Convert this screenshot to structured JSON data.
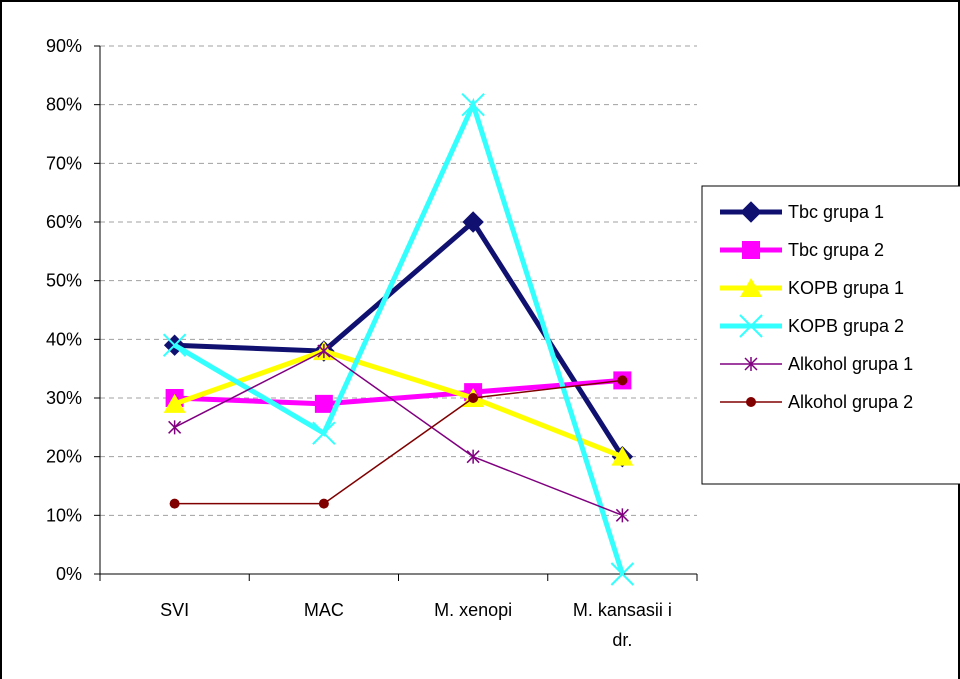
{
  "chart_data": {
    "type": "line",
    "categories": [
      [
        "SVI"
      ],
      [
        "MAC"
      ],
      [
        "M. xenopi"
      ],
      [
        "M. kansasii i",
        "dr."
      ]
    ],
    "ylim": [
      0,
      90
    ],
    "yticks": [
      0,
      10,
      20,
      30,
      40,
      50,
      60,
      70,
      80,
      90
    ],
    "ytick_labels": [
      "0%",
      "10%",
      "20%",
      "30%",
      "40%",
      "50%",
      "60%",
      "70%",
      "80%",
      "90%"
    ],
    "grid": true,
    "legend_position": "right",
    "series": [
      {
        "name": "Tbc grupa 1",
        "values": [
          39,
          38,
          60,
          20
        ],
        "color": "#101070",
        "marker": "diamond",
        "width": 5
      },
      {
        "name": "Tbc grupa 2",
        "values": [
          30,
          29,
          31,
          33
        ],
        "color": "#ff00ff",
        "marker": "square",
        "width": 5
      },
      {
        "name": "KOPB grupa 1",
        "values": [
          29,
          38,
          30,
          20
        ],
        "color": "#ffff00",
        "marker": "triangle",
        "width": 5
      },
      {
        "name": "KOPB grupa 2",
        "values": [
          39,
          24,
          80,
          0
        ],
        "color": "#33ffff",
        "marker": "x",
        "width": 5
      },
      {
        "name": "Alkohol grupa 1",
        "values": [
          25,
          38,
          20,
          10
        ],
        "color": "#800080",
        "marker": "star",
        "width": 1.5
      },
      {
        "name": "Alkohol grupa 2",
        "values": [
          12,
          12,
          30,
          33
        ],
        "color": "#800000",
        "marker": "circle",
        "width": 1.5
      }
    ]
  }
}
